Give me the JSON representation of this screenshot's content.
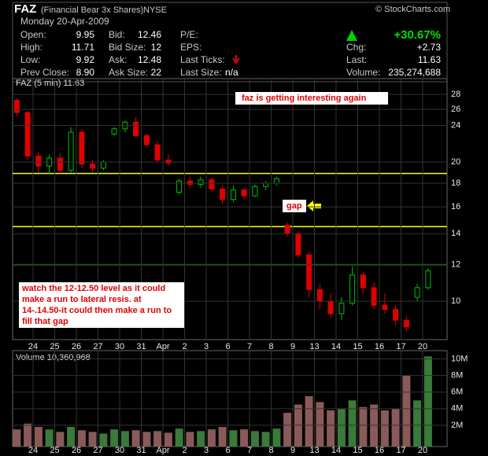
{
  "header": {
    "symbol": "FAZ",
    "name": "(Financial Bear 3x Shares)",
    "exchange": "NYSE",
    "source": "© StockCharts.com",
    "date": "Monday 20-Apr-2009",
    "change_pct": "+30.67%",
    "columns": [
      [
        {
          "label": "Open:",
          "value": "9.95"
        },
        {
          "label": "High:",
          "value": "11.71"
        },
        {
          "label": "Low:",
          "value": "9.92"
        },
        {
          "label": "Prev Close:",
          "value": "8.90"
        }
      ],
      [
        {
          "label": "Bid:",
          "value": "12.46"
        },
        {
          "label": "Bid Size:",
          "value": "12"
        },
        {
          "label": "Ask:",
          "value": "12.48"
        },
        {
          "label": "Ask Size:",
          "value": "22"
        }
      ],
      [
        {
          "label": "P/E:"
        },
        {
          "label": "EPS:"
        },
        {
          "label": "Last Ticks:"
        },
        {
          "label": "Last Size:",
          "value": "n/a"
        }
      ],
      [
        {
          "label": "Chg:",
          "value": "+2.73"
        },
        {
          "label": "Last:",
          "value": "11.63"
        },
        {
          "label": "Volume:",
          "value": "235,274,688"
        }
      ]
    ]
  },
  "chart_data": {
    "type": "candlestick",
    "legend_label": "FAZ (5 min) 11.63",
    "categories": [
      null,
      null,
      "24",
      null,
      "25",
      null,
      "26",
      null,
      "27",
      null,
      "30",
      null,
      "31",
      null,
      "Apr",
      null,
      "2",
      null,
      "3",
      null,
      "6",
      null,
      "7",
      null,
      "8",
      null,
      "9",
      null,
      "13",
      null,
      "14",
      null,
      "15",
      null,
      "16",
      null,
      "17",
      null,
      "20",
      null
    ],
    "open": [
      28.6,
      27.2,
      25.6,
      20.6,
      19.6,
      20.4,
      19.2,
      23.2,
      19.8,
      19.4,
      23.0,
      23.6,
      24.4,
      22.8,
      21.8,
      20.2,
      17.2,
      18.2,
      17.9,
      18.3,
      17.5,
      16.6,
      17.4,
      16.9,
      17.7,
      18.0,
      14.6,
      14.0,
      12.6,
      10.6,
      10.0,
      9.4,
      9.9,
      11.4,
      10.7,
      9.8,
      9.6,
      9.1,
      10.2,
      10.7
    ],
    "high": [
      28.8,
      27.5,
      25.8,
      21.0,
      20.8,
      20.9,
      23.8,
      23.6,
      20.2,
      20.2,
      23.8,
      24.6,
      25.0,
      23.0,
      22.2,
      20.8,
      18.4,
      18.6,
      18.6,
      18.5,
      17.8,
      17.8,
      17.6,
      17.9,
      18.2,
      18.6,
      14.8,
      14.2,
      12.8,
      10.9,
      10.4,
      10.2,
      11.9,
      11.6,
      11.0,
      10.4,
      9.8,
      9.3,
      10.9,
      11.8
    ],
    "low": [
      26.8,
      25.2,
      20.2,
      19.0,
      18.8,
      18.9,
      19.0,
      19.4,
      19.0,
      19.2,
      22.8,
      23.2,
      22.6,
      21.6,
      20.0,
      19.6,
      17.0,
      17.6,
      17.6,
      17.2,
      16.2,
      16.4,
      16.6,
      16.8,
      17.4,
      17.8,
      13.8,
      12.4,
      10.2,
      9.6,
      9.2,
      9.1,
      9.8,
      10.4,
      9.6,
      9.4,
      8.9,
      8.6,
      10.0,
      10.6
    ],
    "close": [
      27.2,
      25.6,
      20.6,
      19.6,
      20.4,
      19.2,
      23.2,
      19.8,
      19.4,
      20.0,
      23.6,
      24.4,
      22.8,
      21.8,
      20.2,
      19.9,
      18.2,
      17.9,
      18.3,
      17.5,
      16.6,
      17.4,
      16.9,
      17.7,
      18.0,
      18.4,
      14.0,
      12.6,
      10.6,
      10.0,
      9.4,
      9.9,
      11.4,
      10.7,
      9.8,
      9.6,
      9.1,
      8.8,
      10.7,
      11.63
    ],
    "up_color": "#00c000",
    "down_color": "#e00000",
    "log_scale": true,
    "ylim": [
      8.26,
      30.3
    ],
    "yticks": [
      10,
      12,
      14,
      16,
      18,
      20,
      24,
      26,
      28
    ],
    "grid": true,
    "hlines": [
      {
        "value": 18.9,
        "color": "#ffff00"
      },
      {
        "value": 14.5,
        "color": "#ffff00"
      },
      {
        "value": 12,
        "color": "#00e000"
      }
    ],
    "annotations": [
      {
        "lines": [
          "faz is getting interesting again"
        ]
      },
      {
        "lines": [
          "gap"
        ]
      },
      {
        "lines": [
          "watch the 12-12.50 level as it could",
          "make a run to lateral resis. at",
          "14-.14.50-it could then make a run to",
          "fill that gap"
        ]
      }
    ],
    "volume": {
      "legend_label": "Volume 10,360,968",
      "values": [
        2000000,
        1500000,
        2200000,
        1800000,
        1500000,
        1200000,
        1800000,
        1400000,
        1200000,
        1000000,
        1500000,
        1300000,
        1400000,
        1200000,
        1300000,
        1100000,
        1600000,
        1200000,
        1300000,
        1500000,
        1800000,
        1400000,
        1500000,
        1300000,
        1200000,
        1600000,
        3500000,
        4500000,
        5500000,
        4800000,
        3800000,
        4000000,
        5000000,
        4200000,
        4500000,
        3800000,
        4000000,
        8000000,
        5000000,
        10300000
      ],
      "ylim": [
        0,
        11000000
      ],
      "yticks": [
        {
          "value": 2000000,
          "label": "2M"
        },
        {
          "value": 4000000,
          "label": "4M"
        },
        {
          "value": 6000000,
          "label": "6M"
        },
        {
          "value": 8000000,
          "label": "8M"
        },
        {
          "value": 10000000,
          "label": "10M"
        }
      ]
    }
  }
}
